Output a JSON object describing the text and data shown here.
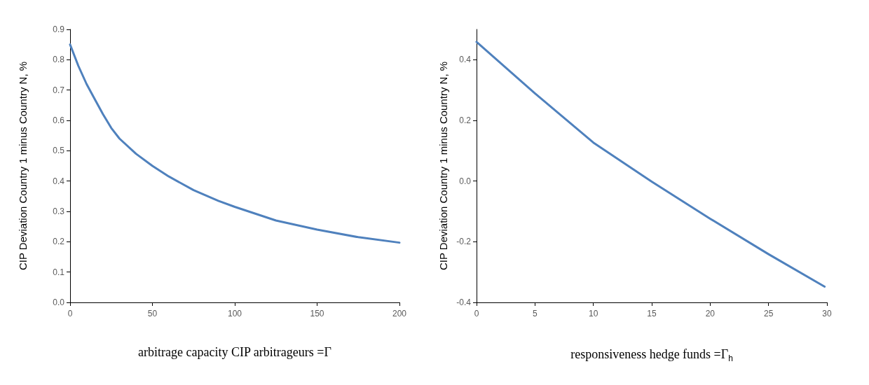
{
  "chart_data": [
    {
      "type": "line",
      "xlabel": "arbitrage capacity CIP arbitrageurs =Γ",
      "ylabel": "CIP Deviation Country 1 minus Country N, %",
      "xlim": [
        0,
        200
      ],
      "xticks": [
        0,
        50,
        100,
        150,
        200
      ],
      "ylim": [
        0,
        0.9
      ],
      "yticks": [
        {
          "value": 0,
          "label": "0.0"
        },
        0.1,
        0.2,
        0.3,
        0.4,
        0.5,
        0.6,
        0.7,
        0.8,
        0.9
      ],
      "grid": false,
      "marker": "none",
      "line_style": "solid",
      "series": [
        {
          "color": "#4f81bd",
          "x": [
            0,
            5,
            10,
            15,
            20,
            25,
            30,
            40,
            50,
            60,
            75,
            90,
            100,
            125,
            150,
            175,
            200
          ],
          "values": [
            0.85,
            0.78,
            0.72,
            0.67,
            0.62,
            0.575,
            0.54,
            0.49,
            0.45,
            0.415,
            0.37,
            0.335,
            0.315,
            0.27,
            0.24,
            0.215,
            0.197
          ]
        }
      ]
    },
    {
      "type": "line",
      "xlabel": "responsiveness hedge funds =Γ$_{h}$",
      "ylabel": "CIP Deviation Country 1 minus Country N, %",
      "xlim": [
        0,
        30
      ],
      "xticks": [
        0,
        5,
        10,
        15,
        20,
        25,
        30
      ],
      "ylim": [
        -0.4,
        0.5
      ],
      "yticks": [
        -0.4,
        -0.2,
        {
          "value": 0,
          "label": "0.0"
        },
        0.2,
        0.4
      ],
      "grid": false,
      "marker": "none",
      "line_style": "solid",
      "series": [
        {
          "color": "#4f81bd",
          "x": [
            0,
            5,
            10,
            15,
            20,
            25,
            29.8
          ],
          "values": [
            0.459,
            0.289,
            0.127,
            -0.002,
            -0.124,
            -0.241,
            -0.348
          ]
        }
      ]
    }
  ]
}
